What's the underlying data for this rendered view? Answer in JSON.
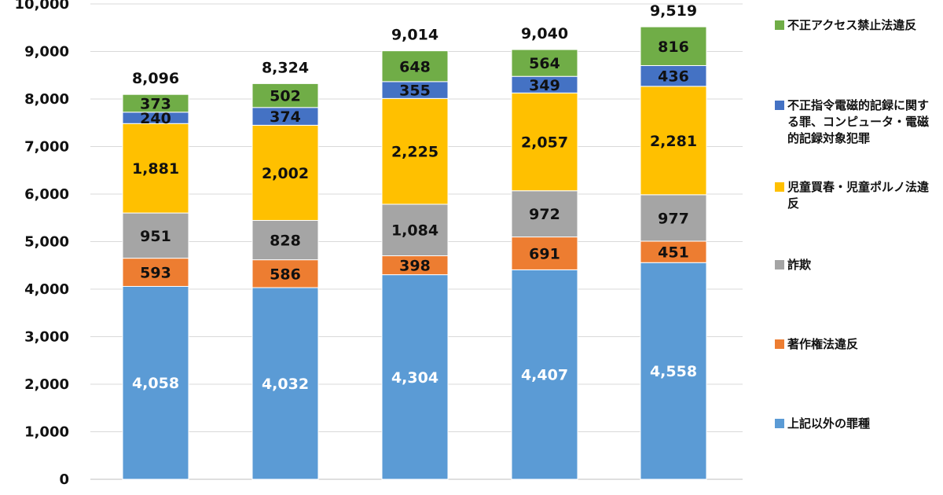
{
  "chart_data": {
    "type": "bar",
    "stacked": true,
    "title": "",
    "xlabel": "",
    "ylabel": "",
    "ylim": [
      0,
      10000
    ],
    "y_ticks": [
      "0",
      "1,000",
      "2,000",
      "3,000",
      "4,000",
      "5,000",
      "6,000",
      "7,000",
      "8,000",
      "9,000",
      "10,000"
    ],
    "categories": [
      "",
      "",
      "",
      "",
      ""
    ],
    "series": [
      {
        "name": "上記以外の罪種",
        "color": "#5b9bd5",
        "values": [
          4058,
          4032,
          4304,
          4407,
          4558
        ],
        "labels": [
          "4,058",
          "4,032",
          "4,304",
          "4,407",
          "4,558"
        ]
      },
      {
        "name": "著作権法違反",
        "color": "#ed7d31",
        "values": [
          593,
          586,
          398,
          691,
          451
        ],
        "labels": [
          "593",
          "586",
          "398",
          "691",
          "451"
        ]
      },
      {
        "name": "詐欺",
        "color": "#a5a5a5",
        "values": [
          951,
          828,
          1084,
          972,
          977
        ],
        "labels": [
          "951",
          "828",
          "1,084",
          "972",
          "977"
        ]
      },
      {
        "name": "児童買春・児童ポルノ法違反",
        "color": "#ffc000",
        "values": [
          1881,
          2002,
          2225,
          2057,
          2281
        ],
        "labels": [
          "1,881",
          "2,002",
          "2,225",
          "2,057",
          "2,281"
        ]
      },
      {
        "name": "不正指令電磁的記録に関する罪、コンピュータ・電磁的記録対象犯罪",
        "color": "#4472c4",
        "values": [
          240,
          374,
          355,
          349,
          436
        ],
        "labels": [
          "240",
          "374",
          "355",
          "349",
          "436"
        ]
      },
      {
        "name": "不正アクセス禁止法違反",
        "color": "#70ad47",
        "values": [
          373,
          502,
          648,
          564,
          816
        ],
        "labels": [
          "373",
          "502",
          "648",
          "564",
          "816"
        ]
      }
    ],
    "totals": [
      8096,
      8324,
      9014,
      9040,
      9519
    ],
    "total_labels": [
      "8,096",
      "8,324",
      "9,014",
      "9,040",
      "9,519"
    ],
    "legend_position": "right"
  },
  "legend": {
    "items": [
      {
        "label": "不正アクセス禁止法違反",
        "color": "#70ad47"
      },
      {
        "label": "不正指令電磁的記録に関する罪、コンピュータ・電磁的記録対象犯罪",
        "color": "#4472c4"
      },
      {
        "label": "児童買春・児童ポルノ法違反",
        "color": "#ffc000"
      },
      {
        "label": "詐欺",
        "color": "#a5a5a5"
      },
      {
        "label": "著作権法違反",
        "color": "#ed7d31"
      },
      {
        "label": "上記以外の罪種",
        "color": "#5b9bd5"
      }
    ]
  }
}
